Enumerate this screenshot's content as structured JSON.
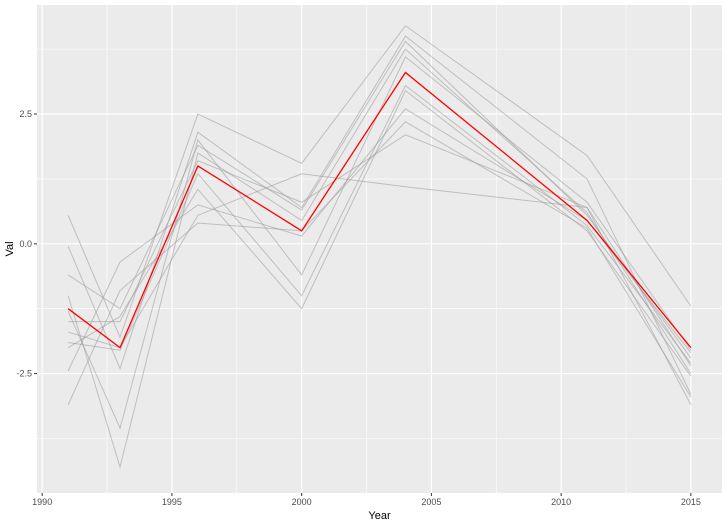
{
  "chart_data": {
    "type": "line",
    "title": "",
    "xlabel": "Year",
    "ylabel": "Val",
    "xlim": [
      1989.8,
      2016.2
    ],
    "ylim": [
      -4.8,
      4.6
    ],
    "x_ticks": [
      1990,
      1995,
      2000,
      2005,
      2010,
      2015
    ],
    "x_tick_labels": [
      "1990",
      "1995",
      "2000",
      "2005",
      "2010",
      "2015"
    ],
    "y_ticks": [
      -2.5,
      0,
      2.5
    ],
    "y_tick_labels": [
      "-2.5",
      "0.0",
      "2.5"
    ],
    "grid": true,
    "legend": "none",
    "colors": {
      "panel": "#ebebeb",
      "grid": "#ffffff",
      "series": "#999999",
      "highlight": "#ff0000"
    },
    "x": [
      1991,
      1993,
      1996,
      2000,
      2004,
      2011,
      2015
    ],
    "series": [
      {
        "values": [
          0.55,
          -1.8,
          2.5,
          1.55,
          4.2,
          1.7,
          -1.2
        ]
      },
      {
        "values": [
          -0.05,
          -2.4,
          2.15,
          0.7,
          4.0,
          1.25,
          -2.9
        ]
      },
      {
        "values": [
          -0.6,
          -1.25,
          1.9,
          0.65,
          3.9,
          0.55,
          -2.2
        ]
      },
      {
        "values": [
          -1.0,
          -4.3,
          1.75,
          0.45,
          3.75,
          0.6,
          -2.5
        ]
      },
      {
        "values": [
          -1.3,
          -3.55,
          2.0,
          -0.6,
          3.6,
          0.8,
          -2.05
        ]
      },
      {
        "values": [
          -1.9,
          -2.05,
          1.35,
          -1.0,
          3.05,
          0.35,
          -2.3
        ]
      },
      {
        "values": [
          -2.0,
          -1.4,
          1.05,
          -1.25,
          2.95,
          0.25,
          -2.55
        ]
      },
      {
        "values": [
          -2.45,
          -0.35,
          0.75,
          0.15,
          2.6,
          0.45,
          -2.1
        ]
      },
      {
        "values": [
          -3.1,
          -0.9,
          0.4,
          0.25,
          2.35,
          0.3,
          -2.95
        ]
      },
      {
        "values": [
          -1.5,
          -1.5,
          1.6,
          0.8,
          2.1,
          0.7,
          -3.1
        ]
      },
      {
        "values": [
          -1.7,
          -2.0,
          0.55,
          1.35,
          1.1,
          0.7,
          -2.35
        ]
      }
    ],
    "highlight": {
      "values": [
        -1.25,
        -2.0,
        1.5,
        0.25,
        3.3,
        0.45,
        -2.0
      ]
    }
  }
}
